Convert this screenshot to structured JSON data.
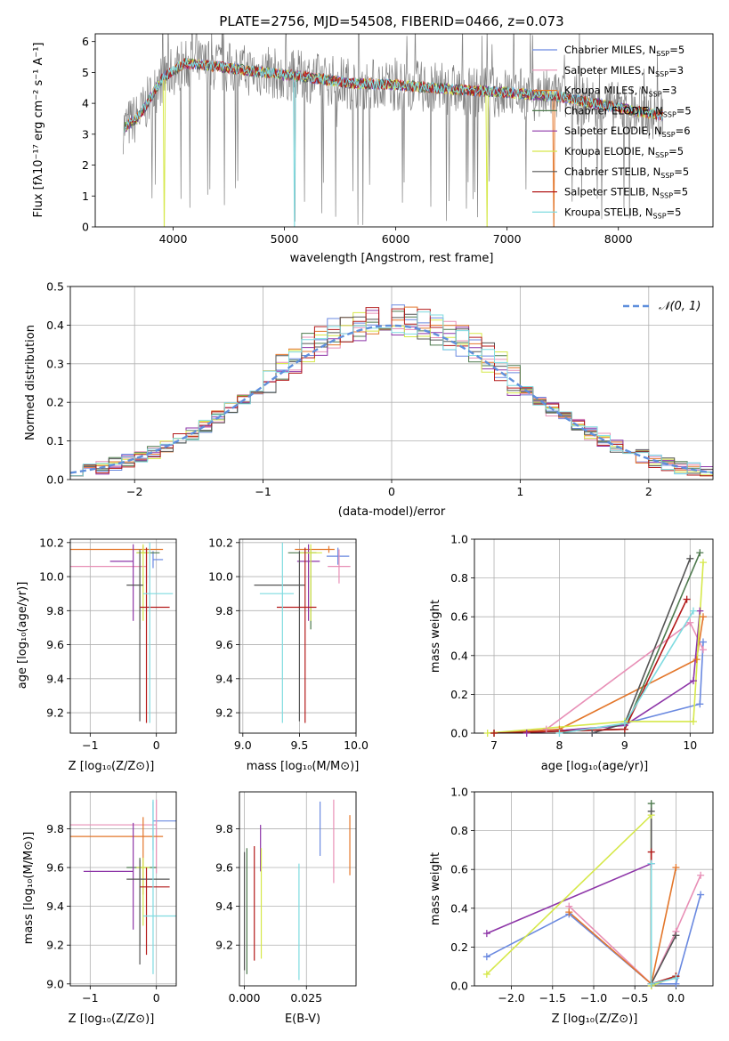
{
  "colors": {
    "Chabrier MILES": "#6a89e0",
    "Salpeter MILES": "#e88fb6",
    "Kroupa MILES": "#e3762a",
    "Chabrier ELODIE": "#4e7a4e",
    "Salpeter ELODIE": "#8e36a8",
    "Kroupa ELODIE": "#d6e84a",
    "Chabrier STELIB": "#555555",
    "Salpeter STELIB": "#b31a1a",
    "Kroupa STELIB": "#7fdbe0",
    "data": "#808080",
    "gaussian": "#5f8fdc",
    "grid": "#b0b0b0"
  },
  "chart_data": [
    {
      "id": "spectrum",
      "type": "line",
      "title": "PLATE=2756, MJD=54508, FIBERID=0466, z=0.073",
      "xlabel": "wavelength [Angstrom, rest frame]",
      "ylabel": "Flux [fλ10⁻¹⁷ erg cm⁻² s⁻¹ A⁻¹]",
      "xlim": [
        3300,
        8850
      ],
      "ylim": [
        0,
        6.25
      ],
      "xticks": [
        "4000",
        "5000",
        "6000",
        "7000",
        "8000"
      ],
      "yticks": [
        "0",
        "1",
        "2",
        "3",
        "4",
        "5",
        "6"
      ],
      "grid": false,
      "legend": "top-right",
      "legend_entries": [
        {
          "imf": "Chabrier",
          "lib": "MILES",
          "n": "5"
        },
        {
          "imf": "Salpeter",
          "lib": "MILES",
          "n": "3"
        },
        {
          "imf": "Kroupa",
          "lib": "MILES",
          "n": "3"
        },
        {
          "imf": "Chabrier",
          "lib": "ELODIE",
          "n": "5"
        },
        {
          "imf": "Salpeter",
          "lib": "ELODIE",
          "n": "6"
        },
        {
          "imf": "Kroupa",
          "lib": "ELODIE",
          "n": "5"
        },
        {
          "imf": "Chabrier",
          "lib": "STELIB",
          "n": "5"
        },
        {
          "imf": "Salpeter",
          "lib": "STELIB",
          "n": "5"
        },
        {
          "imf": "Kroupa",
          "lib": "STELIB",
          "n": "5"
        }
      ],
      "continuum": {
        "x": [
          3550,
          3700,
          3900,
          4100,
          4400,
          4800,
          5200,
          5600,
          6000,
          6500,
          7000,
          7500,
          8000,
          8400
        ],
        "y": [
          3.2,
          3.6,
          4.8,
          5.3,
          5.2,
          5.0,
          4.85,
          4.65,
          4.6,
          4.45,
          4.35,
          4.2,
          3.85,
          3.6
        ]
      }
    },
    {
      "id": "residuals",
      "type": "line",
      "xlabel": "(data-model)/error",
      "ylabel": "Normed distribution",
      "xlim": [
        -2.5,
        2.5
      ],
      "ylim": [
        0,
        0.5
      ],
      "xticks": [
        "−2",
        "−1",
        "0",
        "1",
        "2"
      ],
      "yticks": [
        "0.0",
        "0.1",
        "0.2",
        "0.3",
        "0.4",
        "0.5"
      ],
      "grid": true,
      "legend": "top-right",
      "gaussian_label": "𝒩(0, 1)",
      "bin_width": 0.1
    },
    {
      "id": "age_vs_Z",
      "type": "scatter",
      "xlabel": "Z [log₁₀(Z/Z⊙)]",
      "ylabel": "age  [log₁₀(age/yr)]",
      "xlim": [
        -1.3,
        0.3
      ],
      "ylim": [
        9.08,
        10.22
      ],
      "xticks": [
        "−1",
        "0"
      ],
      "yticks": [
        "9.2",
        "9.4",
        "9.6",
        "9.8",
        "10.0",
        "10.2"
      ],
      "grid": true,
      "points": [
        {
          "key": "Chabrier MILES",
          "x": -0.05,
          "y": 10.1,
          "xerr": [
            0.0,
            0.15
          ],
          "yerr": [
            0.05,
            0.05
          ]
        },
        {
          "key": "Salpeter MILES",
          "x": -0.15,
          "y": 10.06,
          "xerr": [
            1.15,
            0.0
          ],
          "yerr": [
            0.1,
            0.1
          ]
        },
        {
          "key": "Kroupa MILES",
          "x": -0.2,
          "y": 10.16,
          "xerr": [
            1.1,
            0.3
          ],
          "yerr": [
            0.02,
            0.02
          ]
        },
        {
          "key": "Chabrier ELODIE",
          "x": -0.25,
          "y": 10.14,
          "xerr": [
            0.05,
            0.3
          ],
          "yerr": [
            0.45,
            0.02
          ]
        },
        {
          "key": "Salpeter ELODIE",
          "x": -0.35,
          "y": 10.09,
          "xerr": [
            0.35,
            0.0
          ],
          "yerr": [
            0.35,
            0.1
          ]
        },
        {
          "key": "Kroupa ELODIE",
          "x": -0.2,
          "y": 10.14,
          "xerr": [
            0.1,
            0.1
          ],
          "yerr": [
            0.4,
            0.05
          ]
        },
        {
          "key": "Chabrier STELIB",
          "x": -0.25,
          "y": 9.95,
          "xerr": [
            0.2,
            0.05
          ],
          "yerr": [
            0.8,
            0.2
          ]
        },
        {
          "key": "Salpeter STELIB",
          "x": -0.15,
          "y": 9.82,
          "xerr": [
            0.1,
            0.35
          ],
          "yerr": [
            0.68,
            0.35
          ]
        },
        {
          "key": "Kroupa STELIB",
          "x": -0.1,
          "y": 9.9,
          "xerr": [
            0.1,
            0.35
          ],
          "yerr": [
            0.76,
            0.3
          ]
        }
      ]
    },
    {
      "id": "age_vs_mass",
      "type": "scatter",
      "xlabel": "mass [log₁₀(M/M⊙)]",
      "xlim": [
        8.97,
        10.0
      ],
      "ylim": [
        9.08,
        10.22
      ],
      "xticks": [
        "9.0",
        "9.5",
        "10.0"
      ],
      "yticks": [
        "9.2",
        "9.4",
        "9.6",
        "9.8",
        "10.0",
        "10.2"
      ],
      "grid": true,
      "points": [
        {
          "key": "Chabrier MILES",
          "x": 9.84,
          "y": 10.12,
          "xerr": [
            0.1,
            0.1
          ],
          "yerr": [
            0.05,
            0.05
          ]
        },
        {
          "key": "Salpeter MILES",
          "x": 9.85,
          "y": 10.06,
          "xerr": [
            0.1,
            0.1
          ],
          "yerr": [
            0.1,
            0.1
          ]
        },
        {
          "key": "Kroupa MILES",
          "x": 9.76,
          "y": 10.16,
          "xerr": [
            0.3,
            0.05
          ],
          "yerr": [
            0.02,
            0.02
          ]
        },
        {
          "key": "Chabrier ELODIE",
          "x": 9.6,
          "y": 10.14,
          "xerr": [
            0.2,
            0.05
          ],
          "yerr": [
            0.45,
            0.02
          ]
        },
        {
          "key": "Salpeter ELODIE",
          "x": 9.58,
          "y": 10.09,
          "xerr": [
            0.1,
            0.1
          ],
          "yerr": [
            0.35,
            0.1
          ]
        },
        {
          "key": "Kroupa ELODIE",
          "x": 9.6,
          "y": 10.14,
          "xerr": [
            0.1,
            0.1
          ],
          "yerr": [
            0.4,
            0.05
          ]
        },
        {
          "key": "Chabrier STELIB",
          "x": 9.5,
          "y": 9.95,
          "xerr": [
            0.4,
            0.05
          ],
          "yerr": [
            0.8,
            0.2
          ]
        },
        {
          "key": "Salpeter STELIB",
          "x": 9.55,
          "y": 9.82,
          "xerr": [
            0.25,
            0.1
          ],
          "yerr": [
            0.68,
            0.35
          ]
        },
        {
          "key": "Kroupa STELIB",
          "x": 9.35,
          "y": 9.9,
          "xerr": [
            0.2,
            0.1
          ],
          "yerr": [
            0.76,
            0.3
          ]
        }
      ]
    },
    {
      "id": "weight_vs_age",
      "type": "line",
      "xlabel": "age  [log₁₀(age/yr)]",
      "ylabel": "mass weight",
      "xlim": [
        6.7,
        10.35
      ],
      "ylim": [
        0,
        1.0
      ],
      "xticks": [
        "7",
        "8",
        "9",
        "10"
      ],
      "yticks": [
        "0.0",
        "0.2",
        "0.4",
        "0.6",
        "0.8",
        "1.0"
      ],
      "grid": true,
      "series": [
        {
          "key": "Chabrier MILES",
          "x": [
            8.5,
            9.0,
            10.15,
            10.2
          ],
          "y": [
            0.0,
            0.05,
            0.15,
            0.47
          ]
        },
        {
          "key": "Salpeter MILES",
          "x": [
            7.8,
            10.0,
            10.2
          ],
          "y": [
            0.02,
            0.57,
            0.43
          ]
        },
        {
          "key": "Kroupa MILES",
          "x": [
            7.0,
            8.0,
            10.1,
            10.2
          ],
          "y": [
            0.0,
            0.02,
            0.38,
            0.6
          ]
        },
        {
          "key": "Chabrier ELODIE",
          "x": [
            7.0,
            9.0,
            10.15
          ],
          "y": [
            0.0,
            0.02,
            0.93
          ]
        },
        {
          "key": "Salpeter ELODIE",
          "x": [
            7.5,
            9.0,
            10.05,
            10.15
          ],
          "y": [
            0.0,
            0.04,
            0.27,
            0.63
          ]
        },
        {
          "key": "Kroupa ELODIE",
          "x": [
            6.9,
            9.0,
            10.05,
            10.2
          ],
          "y": [
            0.0,
            0.06,
            0.06,
            0.88
          ]
        },
        {
          "key": "Chabrier STELIB",
          "x": [
            8.5,
            9.0,
            10.0
          ],
          "y": [
            0.0,
            0.05,
            0.9
          ]
        },
        {
          "key": "Salpeter STELIB",
          "x": [
            7.0,
            9.0,
            9.95
          ],
          "y": [
            0.0,
            0.02,
            0.69
          ]
        },
        {
          "key": "Kroupa STELIB",
          "x": [
            8.0,
            9.0,
            10.05
          ],
          "y": [
            0.0,
            0.05,
            0.63
          ]
        }
      ]
    },
    {
      "id": "mass_vs_Z",
      "type": "scatter",
      "xlabel": "Z [log₁₀(Z/Z⊙)]",
      "ylabel": "mass [log₁₀(M/M⊙)]",
      "xlim": [
        -1.3,
        0.3
      ],
      "ylim": [
        8.99,
        9.99
      ],
      "xticks": [
        "−1",
        "0"
      ],
      "yticks": [
        "9.0",
        "9.2",
        "9.4",
        "9.6",
        "9.8"
      ],
      "grid": true,
      "points": [
        {
          "key": "Chabrier MILES",
          "x": -0.05,
          "y": 9.84,
          "xerr": [
            0.0,
            0.35
          ],
          "yerr": [
            0.15,
            0.1
          ]
        },
        {
          "key": "Salpeter MILES",
          "x": 0.0,
          "y": 9.82,
          "xerr": [
            1.3,
            0.0
          ],
          "yerr": [
            0.25,
            0.13
          ]
        },
        {
          "key": "Kroupa MILES",
          "x": -0.2,
          "y": 9.76,
          "xerr": [
            1.1,
            0.3
          ],
          "yerr": [
            0.3,
            0.1
          ]
        },
        {
          "key": "Chabrier ELODIE",
          "x": -0.25,
          "y": 9.6,
          "xerr": [
            0.2,
            0.25
          ],
          "yerr": [
            0.4,
            0.05
          ]
        },
        {
          "key": "Salpeter ELODIE",
          "x": -0.35,
          "y": 9.58,
          "xerr": [
            0.75,
            0.0
          ],
          "yerr": [
            0.3,
            0.25
          ]
        },
        {
          "key": "Kroupa ELODIE",
          "x": -0.2,
          "y": 9.6,
          "xerr": [
            0.1,
            0.1
          ],
          "yerr": [
            0.3,
            0.05
          ]
        },
        {
          "key": "Chabrier STELIB",
          "x": -0.25,
          "y": 9.54,
          "xerr": [
            0.2,
            0.45
          ],
          "yerr": [
            0.44,
            0.1
          ]
        },
        {
          "key": "Salpeter STELIB",
          "x": -0.15,
          "y": 9.5,
          "xerr": [
            0.1,
            0.35
          ],
          "yerr": [
            0.35,
            0.1
          ]
        },
        {
          "key": "Kroupa STELIB",
          "x": -0.05,
          "y": 9.35,
          "xerr": [
            0.15,
            0.35
          ],
          "yerr": [
            0.3,
            0.6
          ]
        }
      ]
    },
    {
      "id": "mass_vs_ebv",
      "type": "scatter",
      "xlabel": "E(B-V)",
      "xlim": [
        -0.002,
        0.045
      ],
      "ylim": [
        8.99,
        9.99
      ],
      "xticks": [
        "0.000",
        "0.025"
      ],
      "yticks": [
        "9.2",
        "9.4",
        "9.6",
        "9.8"
      ],
      "grid": true,
      "points": [
        {
          "key": "Chabrier MILES",
          "x": 0.0305,
          "y": 9.8,
          "yerr": [
            0.14,
            0.14
          ]
        },
        {
          "key": "Salpeter MILES",
          "x": 0.036,
          "y": 9.74,
          "yerr": [
            0.22,
            0.21
          ]
        },
        {
          "key": "Kroupa MILES",
          "x": 0.0425,
          "y": 9.72,
          "yerr": [
            0.16,
            0.15
          ]
        },
        {
          "key": "Chabrier ELODIE",
          "x": 0.001,
          "y": 9.4,
          "yerr": [
            0.35,
            0.3
          ]
        },
        {
          "key": "Salpeter ELODIE",
          "x": 0.0065,
          "y": 9.68,
          "yerr": [
            0.1,
            0.14
          ]
        },
        {
          "key": "Kroupa ELODIE",
          "x": 0.0068,
          "y": 9.4,
          "yerr": [
            0.27,
            0.3
          ]
        },
        {
          "key": "Chabrier STELIB",
          "x": 0.0,
          "y": 9.37,
          "yerr": [
            0.3,
            0.31
          ]
        },
        {
          "key": "Salpeter STELIB",
          "x": 0.004,
          "y": 9.45,
          "yerr": [
            0.33,
            0.26
          ]
        },
        {
          "key": "Kroupa STELIB",
          "x": 0.022,
          "y": 9.32,
          "yerr": [
            0.3,
            0.3
          ]
        }
      ]
    },
    {
      "id": "weight_vs_Z",
      "type": "line",
      "xlabel": "Z [log₁₀(Z/Z⊙)]",
      "ylabel": "mass weight",
      "xlim": [
        -2.45,
        0.45
      ],
      "ylim": [
        0,
        1.0
      ],
      "xticks": [
        "−2.0",
        "−1.5",
        "−1.0",
        "−0.5",
        "0.0"
      ],
      "yticks": [
        "0.0",
        "0.2",
        "0.4",
        "0.6",
        "0.8",
        "1.0"
      ],
      "grid": true,
      "series": [
        {
          "key": "Chabrier MILES",
          "x": [
            -2.3,
            -1.3,
            -0.3,
            0.0,
            0.3
          ],
          "y": [
            0.15,
            0.37,
            0.01,
            0.01,
            0.47
          ]
        },
        {
          "key": "Salpeter MILES",
          "x": [
            -1.3,
            -0.3,
            0.0,
            0.3
          ],
          "y": [
            0.41,
            0.01,
            0.28,
            0.57
          ]
        },
        {
          "key": "Kroupa MILES",
          "x": [
            -1.3,
            -0.3,
            0.0
          ],
          "y": [
            0.38,
            0.01,
            0.61
          ]
        },
        {
          "key": "Chabrier ELODIE",
          "x": [
            -0.3,
            -0.3,
            0.0
          ],
          "y": [
            0.94,
            0.0,
            0.05
          ]
        },
        {
          "key": "Salpeter ELODIE",
          "x": [
            -2.3,
            -0.3,
            -0.3,
            0.0
          ],
          "y": [
            0.27,
            0.63,
            0.0,
            0.05
          ]
        },
        {
          "key": "Kroupa ELODIE",
          "x": [
            -2.3,
            -0.3,
            -0.3,
            0.0
          ],
          "y": [
            0.06,
            0.88,
            0.0,
            0.05
          ]
        },
        {
          "key": "Chabrier STELIB",
          "x": [
            -0.3,
            -0.3,
            0.0
          ],
          "y": [
            0.9,
            0.01,
            0.26
          ]
        },
        {
          "key": "Salpeter STELIB",
          "x": [
            -0.3,
            -0.3,
            0.0
          ],
          "y": [
            0.69,
            0.01,
            0.05
          ]
        },
        {
          "key": "Kroupa STELIB",
          "x": [
            -0.3,
            -0.3,
            0.0
          ],
          "y": [
            0.63,
            0.01,
            0.04
          ]
        }
      ]
    }
  ]
}
